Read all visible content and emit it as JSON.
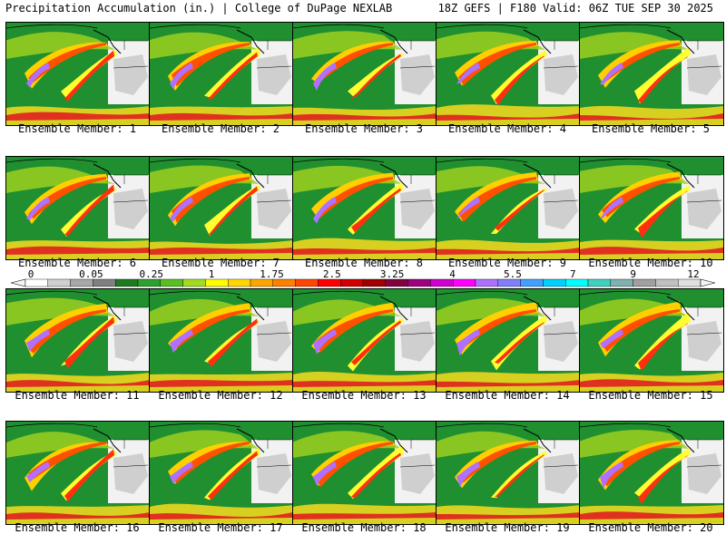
{
  "header": {
    "left_title": "Precipitation Accumulation (in.) | College of DuPage NEXLAB",
    "right_title": "18Z GEFS | F180 Valid: 06Z TUE SEP 30 2025"
  },
  "panels": [
    {
      "label": "Ensemble Member: 1"
    },
    {
      "label": "Ensemble Member: 2"
    },
    {
      "label": "Ensemble Member: 3"
    },
    {
      "label": "Ensemble Member: 4"
    },
    {
      "label": "Ensemble Member: 5"
    },
    {
      "label": "Ensemble Member: 6"
    },
    {
      "label": "Ensemble Member: 7"
    },
    {
      "label": "Ensemble Member: 8"
    },
    {
      "label": "Ensemble Member: 9"
    },
    {
      "label": "Ensemble Member: 10"
    },
    {
      "label": "Ensemble Member: 11"
    },
    {
      "label": "Ensemble Member: 12"
    },
    {
      "label": "Ensemble Member: 13"
    },
    {
      "label": "Ensemble Member: 14"
    },
    {
      "label": "Ensemble Member: 15"
    },
    {
      "label": "Ensemble Member: 16"
    },
    {
      "label": "Ensemble Member: 17"
    },
    {
      "label": "Ensemble Member: 18"
    },
    {
      "label": "Ensemble Member: 19"
    },
    {
      "label": "Ensemble Member: 20"
    }
  ],
  "colorbar": {
    "tick_labels": [
      "0",
      "0.05",
      "0.25",
      "1",
      "1.75",
      "2.5",
      "3.25",
      "4",
      "5.5",
      "7",
      "9",
      "12"
    ],
    "colors": [
      "#ffffff",
      "#d0d0d0",
      "#a8a8a8",
      "#808080",
      "#1e7a1e",
      "#2ea02e",
      "#58c020",
      "#a0dc20",
      "#ffff00",
      "#ffd700",
      "#ffa500",
      "#ff7f00",
      "#ff4500",
      "#ff0000",
      "#d00000",
      "#a00000",
      "#800040",
      "#a00080",
      "#d000d0",
      "#ff00ff",
      "#b070ff",
      "#8080ff",
      "#40a0ff",
      "#00d0ff",
      "#00ffff",
      "#40d0c0",
      "#80b0b0",
      "#a0a0a0",
      "#c0c0c0",
      "#e0e0e0"
    ]
  }
}
